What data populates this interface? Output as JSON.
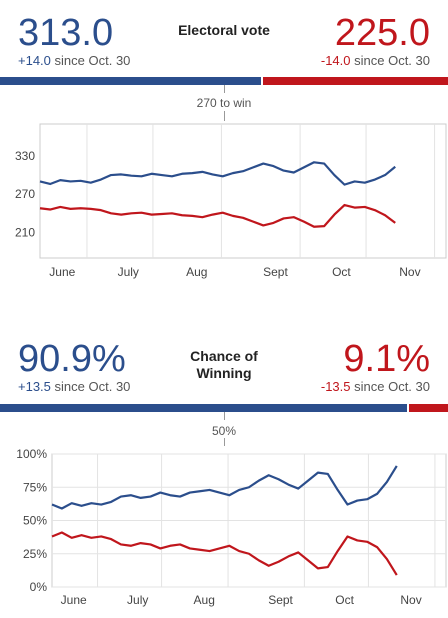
{
  "electoral": {
    "dem_value": "313.0",
    "dem_change": "+14.0",
    "dem_since": "since Oct. 30",
    "rep_value": "225.0",
    "rep_change": "-14.0",
    "rep_since": "since Oct. 30",
    "title": "Electoral vote",
    "threshold_label": "270 to win",
    "dem_share": 0.5818,
    "colors": {
      "dem": "#2b4e8c",
      "rep": "#c0161c"
    }
  },
  "winning": {
    "dem_value": "90.9%",
    "dem_change": "+13.5",
    "dem_since": "since Oct. 30",
    "rep_value": "9.1%",
    "rep_change": "-13.5",
    "rep_since": "since Oct. 30",
    "title": "Chance of Winning",
    "threshold_label": "50%",
    "dem_share": 0.909,
    "colors": {
      "dem": "#2b4e8c",
      "rep": "#c0161c"
    }
  },
  "chart_data": [
    {
      "type": "line",
      "x_ticks": [
        "June",
        "July",
        "Aug",
        "Sept",
        "Oct",
        "Nov"
      ],
      "y_ticks": [
        "330",
        "270",
        "210"
      ],
      "y_tick_values": [
        330,
        270,
        210
      ],
      "ylim": [
        170,
        380
      ],
      "xlim": [
        0,
        160
      ],
      "x_tick_positions": [
        8,
        34,
        61,
        92,
        118,
        145
      ],
      "grid": true,
      "series": [
        {
          "color": "#2b4e8c",
          "x": [
            0,
            4,
            8,
            12,
            16,
            20,
            24,
            28,
            32,
            36,
            40,
            44,
            48,
            52,
            56,
            60,
            64,
            68,
            72,
            76,
            80,
            84,
            88,
            92,
            96,
            100,
            104,
            108,
            112,
            116,
            120,
            124,
            128,
            132,
            136,
            140
          ],
          "values": [
            290,
            286,
            292,
            290,
            291,
            288,
            293,
            300,
            301,
            299,
            298,
            302,
            300,
            298,
            302,
            303,
            305,
            301,
            298,
            303,
            306,
            312,
            318,
            314,
            307,
            304,
            312,
            320,
            318,
            300,
            285,
            290,
            288,
            293,
            300,
            313
          ]
        },
        {
          "color": "#c0161c",
          "x": [
            0,
            4,
            8,
            12,
            16,
            20,
            24,
            28,
            32,
            36,
            40,
            44,
            48,
            52,
            56,
            60,
            64,
            68,
            72,
            76,
            80,
            84,
            88,
            92,
            96,
            100,
            104,
            108,
            112,
            116,
            120,
            124,
            128,
            132,
            136,
            140
          ],
          "values": [
            248,
            246,
            250,
            247,
            248,
            247,
            245,
            240,
            238,
            240,
            241,
            238,
            239,
            240,
            237,
            236,
            234,
            238,
            241,
            236,
            233,
            227,
            221,
            225,
            232,
            234,
            227,
            219,
            220,
            238,
            253,
            249,
            250,
            245,
            237,
            225
          ]
        }
      ]
    },
    {
      "type": "line",
      "x_ticks": [
        "June",
        "July",
        "Aug",
        "Sept",
        "Oct",
        "Nov"
      ],
      "y_ticks": [
        "100%",
        "75%",
        "50%",
        "25%",
        "0%"
      ],
      "y_tick_values": [
        100,
        75,
        50,
        25,
        0
      ],
      "ylim": [
        0,
        100
      ],
      "xlim": [
        0,
        160
      ],
      "x_tick_positions": [
        8,
        34,
        61,
        92,
        118,
        145
      ],
      "grid": true,
      "series": [
        {
          "color": "#2b4e8c",
          "x": [
            0,
            4,
            8,
            12,
            16,
            20,
            24,
            28,
            32,
            36,
            40,
            44,
            48,
            52,
            56,
            60,
            64,
            68,
            72,
            76,
            80,
            84,
            88,
            92,
            96,
            100,
            104,
            108,
            112,
            116,
            120,
            124,
            128,
            132,
            136,
            140
          ],
          "values": [
            62,
            59,
            63,
            61,
            63,
            62,
            64,
            68,
            69,
            67,
            68,
            71,
            69,
            68,
            71,
            72,
            73,
            71,
            69,
            73,
            75,
            80,
            84,
            81,
            77,
            74,
            80,
            86,
            85,
            73,
            62,
            65,
            66,
            70,
            79,
            91
          ]
        },
        {
          "color": "#c0161c",
          "x": [
            0,
            4,
            8,
            12,
            16,
            20,
            24,
            28,
            32,
            36,
            40,
            44,
            48,
            52,
            56,
            60,
            64,
            68,
            72,
            76,
            80,
            84,
            88,
            92,
            96,
            100,
            104,
            108,
            112,
            116,
            120,
            124,
            128,
            132,
            136,
            140
          ],
          "values": [
            38,
            41,
            37,
            39,
            37,
            38,
            36,
            32,
            31,
            33,
            32,
            29,
            31,
            32,
            29,
            28,
            27,
            29,
            31,
            27,
            25,
            20,
            16,
            19,
            23,
            26,
            20,
            14,
            15,
            27,
            38,
            35,
            34,
            30,
            21,
            9
          ]
        }
      ]
    }
  ]
}
